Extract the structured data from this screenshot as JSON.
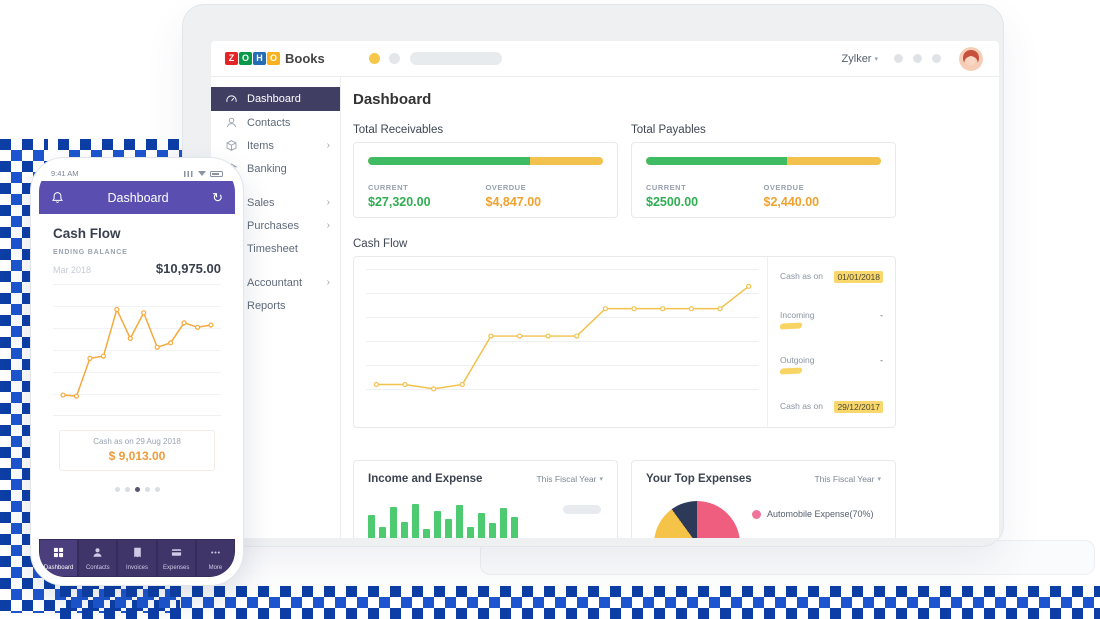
{
  "desktop": {
    "topbar": {
      "logo_letters": [
        "Z",
        "O",
        "H",
        "O"
      ],
      "logo_text": "Books",
      "org_name": "Zylker"
    },
    "page_title": "Dashboard",
    "sidebar": {
      "items": [
        {
          "label": "Dashboard",
          "active": true
        },
        {
          "label": "Contacts"
        },
        {
          "label": "Items",
          "chevron": "›"
        },
        {
          "label": "Banking"
        },
        {
          "label": "Sales",
          "chevron": "›"
        },
        {
          "label": "Purchases",
          "chevron": "›"
        },
        {
          "label": "Timesheet"
        },
        {
          "label": "Accountant",
          "chevron": "›"
        },
        {
          "label": "Reports"
        }
      ]
    },
    "receivables": {
      "title": "Total Receivables",
      "current_label": "CURRENT",
      "current_value": "$27,320.00",
      "overdue_label": "OVERDUE",
      "overdue_value": "$4,847.00",
      "current_pct": 69
    },
    "payables": {
      "title": "Total Payables",
      "current_label": "CURRENT",
      "current_value": "$2500.00",
      "overdue_label": "OVERDUE",
      "overdue_value": "$2,440.00",
      "current_pct": 60
    },
    "cashflow": {
      "title": "Cash Flow",
      "legend": [
        {
          "label": "Cash as on",
          "value": "01/01/2018"
        },
        {
          "label": "Incoming",
          "value": "-"
        },
        {
          "label": "Outgoing",
          "value": "-"
        },
        {
          "label": "Cash as on",
          "value": "29/12/2017"
        }
      ]
    },
    "income_expense": {
      "title": "Income and Expense",
      "filter_label": "This Fiscal Year"
    },
    "top_expenses": {
      "title": "Your Top Expenses",
      "filter_label": "This Fiscal Year",
      "legend_label": "Automobile Expense(70%)"
    }
  },
  "mobile": {
    "status_time": "9:41 AM",
    "header_title": "Dashboard",
    "card_title": "Cash Flow",
    "ending_balance_label": "ENDING BALANCE",
    "period": "Mar 2018",
    "ending_balance_value": "$10,975.00",
    "cash_as_on_label": "Cash as on 29 Aug 2018",
    "cash_as_on_value": "$ 9,013.00",
    "nav_items": [
      {
        "label": "Dashboard",
        "active": true
      },
      {
        "label": "Contacts"
      },
      {
        "label": "Invoices"
      },
      {
        "label": "Expenses"
      },
      {
        "label": "More"
      }
    ]
  },
  "glyphs": {
    "caret_down": "▾",
    "refresh": "↻"
  },
  "colors": {
    "progress_green": "#3fbb63",
    "progress_yellow": "#f2c14e",
    "current_text_green": "#2fae52",
    "overdue_text_orange": "#f0a22e",
    "sidebar_active_bg": "#413e63",
    "mobile_header_purple": "#5a4fb0",
    "mobile_nav_purple": "#3d3464",
    "mobile_amount_orange": "#f09a38",
    "mosaic_blue": "#1c55cf"
  },
  "chart_data": [
    {
      "id": "desktop-cash-flow",
      "type": "line",
      "title": "Cash Flow",
      "color": "#f2c14e",
      "min": 0,
      "max": 10000,
      "markers": true,
      "values": [
        1500,
        1500,
        1150,
        1500,
        5400,
        5400,
        5400,
        5400,
        7600,
        7600,
        7600,
        7600,
        7600,
        9400
      ]
    },
    {
      "id": "mobile-cash-flow",
      "type": "line",
      "title": "Cash Flow (mobile)",
      "color": "#f5a93b",
      "min": 0,
      "max": 10000,
      "markers": true,
      "values": [
        900,
        800,
        4200,
        4400,
        8600,
        6000,
        8300,
        5200,
        5600,
        7400,
        7000,
        7200
      ]
    },
    {
      "id": "income-expense",
      "type": "bar",
      "title": "Income and Expense",
      "color": "#4ecb71",
      "values": [
        62,
        50,
        70,
        55,
        73,
        48,
        66,
        58,
        72,
        50,
        64,
        54,
        69,
        60
      ]
    },
    {
      "id": "top-expenses",
      "type": "pie",
      "title": "Your Top Expenses",
      "slices": [
        {
          "label": "Automobile Expense",
          "pct": 70,
          "color": "#ef5d7f"
        },
        {
          "label": "",
          "pct": 20,
          "color": "#f5c348"
        },
        {
          "label": "",
          "pct": 10,
          "color": "#2d3958"
        }
      ]
    }
  ]
}
